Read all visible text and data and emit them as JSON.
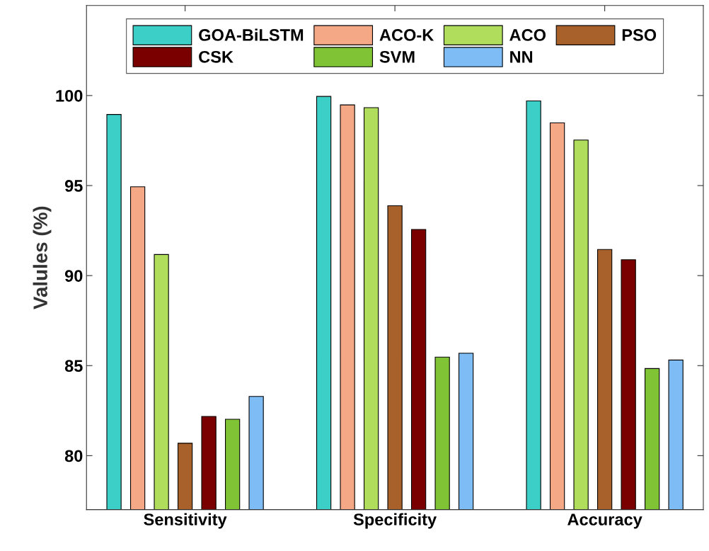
{
  "chart_data": {
    "type": "bar",
    "ylabel": "Valules (%)",
    "categories": [
      "Sensitivity",
      "Specificity",
      "Accuracy"
    ],
    "series": [
      {
        "name": "GOA-BiLSTM",
        "color": "#3ccfc8",
        "values": [
          98.95,
          99.95,
          99.7
        ]
      },
      {
        "name": "ACO-K",
        "color": "#f5a886",
        "values": [
          94.93,
          99.48,
          98.48
        ]
      },
      {
        "name": "ACO",
        "color": "#b0de5c",
        "values": [
          91.17,
          99.33,
          97.53
        ]
      },
      {
        "name": "PSO",
        "color": "#a8612a",
        "values": [
          80.69,
          93.88,
          91.45
        ]
      },
      {
        "name": "CSK",
        "color": "#7a0000",
        "values": [
          82.18,
          92.56,
          90.88
        ]
      },
      {
        "name": "SVM",
        "color": "#80c435",
        "values": [
          82.02,
          85.47,
          84.84
        ]
      },
      {
        "name": "NN",
        "color": "#7dbcf5",
        "values": [
          83.29,
          85.69,
          85.31
        ]
      }
    ],
    "ylim": [
      77,
      105
    ],
    "yticks": [
      80,
      85,
      90,
      95,
      100
    ],
    "grid": false,
    "legend": "top"
  }
}
